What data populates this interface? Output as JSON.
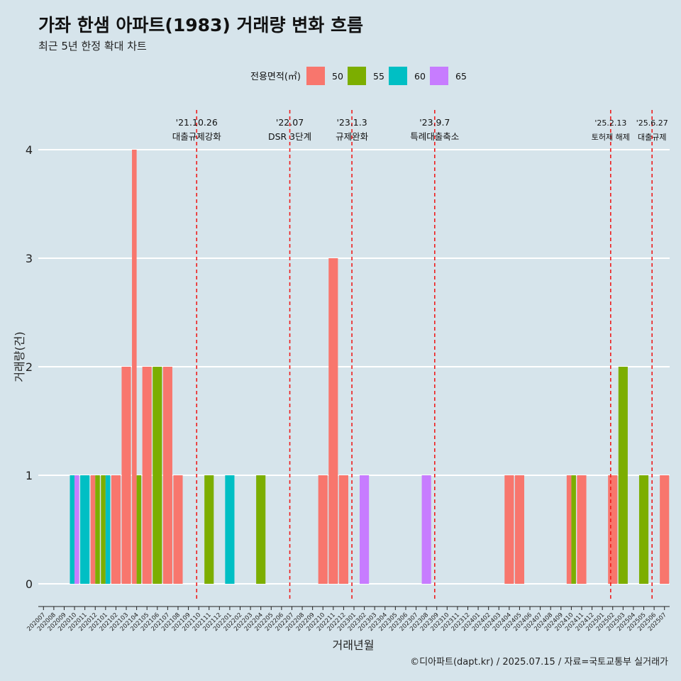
{
  "title": "가좌 한샘 아파트(1983) 거래량 변화 흐름",
  "subtitle": "최근 5년 한정 확대 차트",
  "caption": "©디아파트(dapt.kr) / 2025.07.15 / 자료=국토교통부 실거래가",
  "chart_data": {
    "type": "bar",
    "xlabel": "거래년월",
    "ylabel": "거래량(건)",
    "ylim": [
      0,
      4
    ],
    "yticks": [
      0,
      1,
      2,
      3,
      4
    ],
    "grid": true,
    "legend": {
      "title": "전용면적(㎡)",
      "placement": "top",
      "entries": [
        {
          "name": "50",
          "color": "#f8766d"
        },
        {
          "name": "55",
          "color": "#7cae00"
        },
        {
          "name": "60",
          "color": "#00bfc4"
        },
        {
          "name": "65",
          "color": "#c77cff"
        }
      ]
    },
    "categories": [
      "202007",
      "202008",
      "202009",
      "202010",
      "202011",
      "202012",
      "202101",
      "202102",
      "202103",
      "202104",
      "202105",
      "202106",
      "202107",
      "202108",
      "202109",
      "202110",
      "202111",
      "202112",
      "202201",
      "202202",
      "202203",
      "202204",
      "202205",
      "202206",
      "202207",
      "202208",
      "202209",
      "202210",
      "202211",
      "202212",
      "202301",
      "202302",
      "202303",
      "202304",
      "202305",
      "202306",
      "202307",
      "202308",
      "202309",
      "202310",
      "202311",
      "202312",
      "202401",
      "202402",
      "202403",
      "202404",
      "202405",
      "202406",
      "202407",
      "202408",
      "202409",
      "202410",
      "202411",
      "202412",
      "202501",
      "202502",
      "202503",
      "202504",
      "202505",
      "202506",
      "202507"
    ],
    "series": [
      {
        "name": "50",
        "values": [
          0,
          0,
          0,
          0,
          0,
          1,
          0,
          1,
          2,
          4,
          2,
          0,
          2,
          1,
          0,
          0,
          0,
          0,
          0,
          0,
          0,
          0,
          0,
          0,
          0,
          0,
          0,
          1,
          3,
          1,
          0,
          0,
          0,
          0,
          0,
          0,
          0,
          0,
          0,
          0,
          0,
          0,
          0,
          0,
          0,
          1,
          1,
          0,
          0,
          0,
          0,
          1,
          1,
          0,
          0,
          1,
          0,
          0,
          0,
          0,
          1
        ]
      },
      {
        "name": "55",
        "values": [
          0,
          0,
          0,
          0,
          0,
          1,
          1,
          0,
          0,
          1,
          0,
          2,
          0,
          0,
          0,
          0,
          1,
          0,
          0,
          0,
          0,
          1,
          0,
          0,
          0,
          0,
          0,
          0,
          0,
          0,
          0,
          0,
          0,
          0,
          0,
          0,
          0,
          0,
          0,
          0,
          0,
          0,
          0,
          0,
          0,
          0,
          0,
          0,
          0,
          0,
          0,
          1,
          0,
          0,
          0,
          0,
          2,
          0,
          1,
          0,
          0
        ]
      },
      {
        "name": "60",
        "values": [
          0,
          0,
          0,
          1,
          1,
          0,
          1,
          0,
          0,
          0,
          0,
          0,
          0,
          0,
          0,
          0,
          0,
          0,
          1,
          0,
          0,
          0,
          0,
          0,
          0,
          0,
          0,
          0,
          0,
          0,
          0,
          0,
          0,
          0,
          0,
          0,
          0,
          0,
          0,
          0,
          0,
          0,
          0,
          0,
          0,
          0,
          0,
          0,
          0,
          0,
          0,
          0,
          0,
          0,
          0,
          0,
          0,
          0,
          0,
          0,
          0
        ]
      },
      {
        "name": "65",
        "values": [
          0,
          0,
          0,
          1,
          0,
          0,
          0,
          0,
          0,
          0,
          0,
          0,
          0,
          0,
          0,
          0,
          0,
          0,
          0,
          0,
          0,
          0,
          0,
          0,
          0,
          0,
          0,
          0,
          0,
          0,
          0,
          1,
          0,
          0,
          0,
          0,
          0,
          1,
          0,
          0,
          0,
          0,
          0,
          0,
          0,
          0,
          0,
          0,
          0,
          0,
          0,
          0,
          0,
          0,
          0,
          0,
          0,
          0,
          0,
          0,
          0
        ]
      }
    ],
    "annotations": [
      {
        "x": 15.3,
        "date": "'21.10.26",
        "label": "대출규제강화"
      },
      {
        "x": 24.3,
        "date": "'22.07",
        "label": "DSR 3단계"
      },
      {
        "x": 30.3,
        "date": "'23.1.3",
        "label": "규제완화"
      },
      {
        "x": 38.3,
        "date": "'23.9.7",
        "label": "특례대출축소"
      },
      {
        "x": 55.3,
        "date": "'25.2.13",
        "label": "토허제 해제"
      },
      {
        "x": 59.3,
        "date": "'25.6.27",
        "label": "대출규제"
      }
    ]
  }
}
